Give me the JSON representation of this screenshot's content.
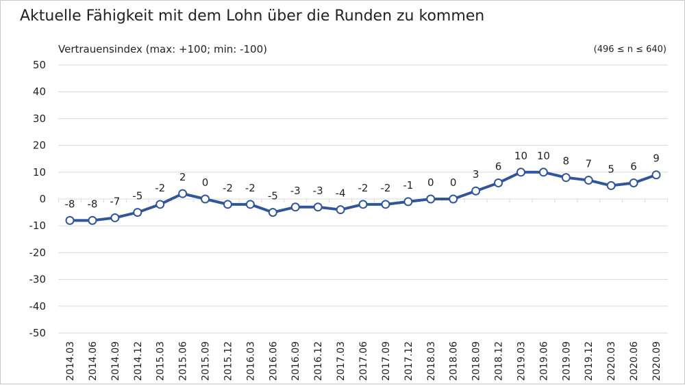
{
  "chart_data": {
    "type": "line",
    "title": "Aktuelle Fähigkeit mit dem Lohn über die Runden zu kommen",
    "ylabel": "Vertrauensindex (max: +100; min: -100)",
    "note": "(496 ≤ n ≤ 640)",
    "ylim": [
      -50,
      50
    ],
    "yticks": [
      50,
      40,
      30,
      20,
      10,
      0,
      -10,
      -20,
      -30,
      -40,
      -50
    ],
    "grid": true,
    "categories": [
      "2014.03",
      "2014.06",
      "2014.09",
      "2014.12",
      "2015.03",
      "2015.06",
      "2015.09",
      "2015.12",
      "2016.03",
      "2016.06",
      "2016.09",
      "2016.12",
      "2017.03",
      "2017.06",
      "2017.09",
      "2017.12",
      "2018.03",
      "2018.06",
      "2018.09",
      "2018.12",
      "2019.03",
      "2019.06",
      "2019.09",
      "2019.12",
      "2020.03",
      "2020.06",
      "2020.09"
    ],
    "series": [
      {
        "values": [
          -8,
          -8,
          -7,
          -5,
          -2,
          2,
          0,
          -2,
          -2,
          -5,
          -3,
          -3,
          -4,
          -2,
          -2,
          -1,
          0,
          0,
          3,
          6,
          10,
          10,
          8,
          7,
          5,
          6,
          9
        ],
        "color": "#2f559a"
      }
    ]
  }
}
